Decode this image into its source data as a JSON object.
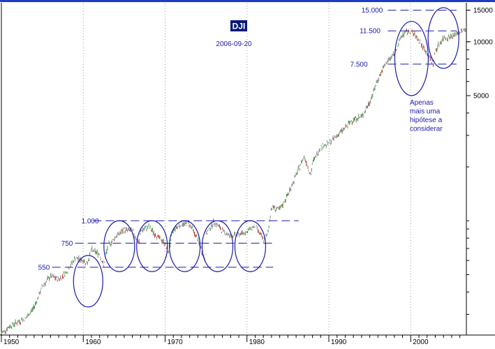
{
  "chart_data": {
    "type": "line",
    "title": "DJI",
    "subtitle": "2006-09-20",
    "y_scale": "log",
    "ylim": [
      230,
      16500
    ],
    "xlim": [
      1950,
      2006.8
    ],
    "x_ticks": [
      1950,
      1960,
      1970,
      1980,
      1990,
      2000
    ],
    "x_tick_labels": [
      "1950",
      "1960",
      "1970",
      "1980",
      "1990",
      "2000"
    ],
    "y_ticks": [
      5000,
      10000,
      15000
    ],
    "y_tick_labels": [
      "5000",
      "10000",
      "15000"
    ],
    "grid": "vertical dotted",
    "series": [
      {
        "x": [
          1950,
          1951,
          1952,
          1953,
          1954,
          1955,
          1956,
          1957,
          1958,
          1959,
          1960,
          1960.5,
          1961,
          1962,
          1962.5,
          1963,
          1964,
          1965,
          1966,
          1966.8,
          1967,
          1968,
          1969,
          1970,
          1970.4,
          1971,
          1972,
          1973,
          1974,
          1974.9,
          1975,
          1976,
          1977,
          1978,
          1979,
          1980,
          1981,
          1982,
          1982.5,
          1983,
          1984,
          1985,
          1986,
          1987,
          1987.8,
          1988,
          1989,
          1990,
          1991,
          1992,
          1993,
          1994,
          1995,
          1996,
          1997,
          1998,
          1999,
          2000,
          2001,
          2002,
          2002.8,
          2003,
          2004,
          2005,
          2006,
          2006.7
        ],
        "y": [
          235,
          257,
          272,
          285,
          330,
          430,
          490,
          470,
          520,
          620,
          600,
          580,
          690,
          650,
          560,
          720,
          820,
          890,
          880,
          750,
          880,
          920,
          820,
          750,
          660,
          890,
          960,
          960,
          780,
          600,
          840,
          990,
          880,
          820,
          840,
          870,
          940,
          780,
          830,
          1200,
          1150,
          1400,
          1800,
          2300,
          1800,
          2100,
          2600,
          2700,
          3000,
          3300,
          3700,
          3800,
          4600,
          6200,
          7600,
          8600,
          11000,
          11500,
          10200,
          8600,
          7500,
          9000,
          10500,
          10700,
          11300,
          11700
        ]
      }
    ],
    "annotations": {
      "level_labels": [
        "15.000",
        "11.500",
        "7.500",
        "1.000",
        "750",
        "550"
      ],
      "note_lines": [
        "Apenas",
        "mais uma",
        "hipótese a",
        "considerar"
      ]
    }
  },
  "colors": {
    "axis": "#000000",
    "grid": "#a0a0a0",
    "annotation": "#1a1aaa",
    "title_box": "#0a1a7a",
    "title_text": "#ffffff",
    "top_rule": "#1a3cc8",
    "price_up": "#3c9a3c",
    "price_down": "#c83232",
    "price_base": "#8a8a8a"
  }
}
